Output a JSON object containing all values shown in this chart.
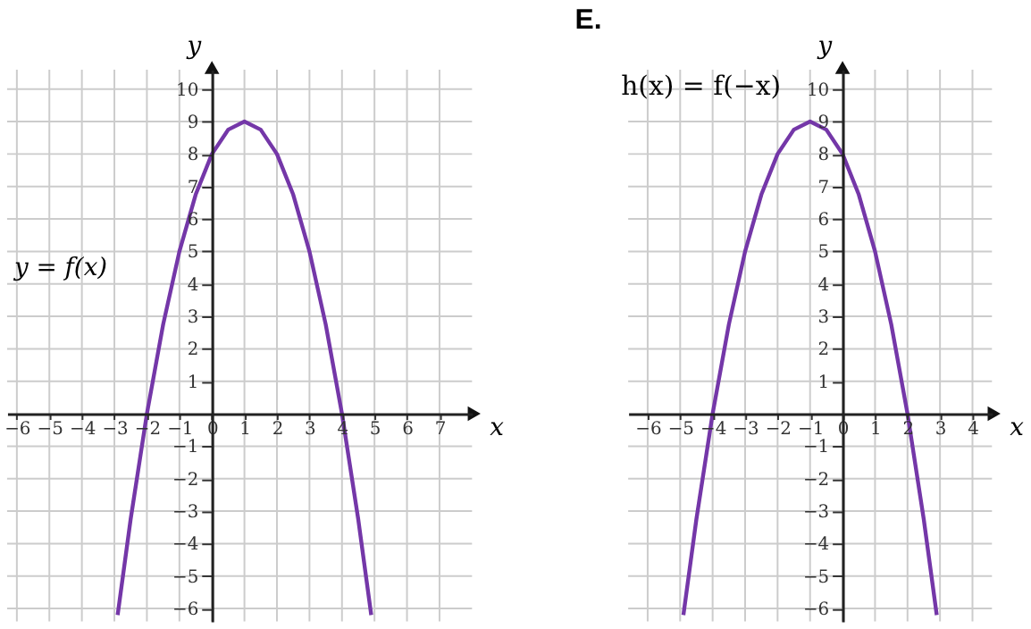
{
  "chart_data": [
    {
      "type": "line",
      "xlabel": "x",
      "ylabel": "y",
      "annotations": [
        "y = f(x)"
      ],
      "grid": true,
      "xlim": [
        -6.3,
        8
      ],
      "ylim": [
        -6.4,
        10.6
      ],
      "xticks": [
        -6,
        -5,
        -4,
        -3,
        -2,
        -1,
        0,
        1,
        2,
        3,
        4,
        5,
        6,
        7
      ],
      "yticks": [
        -6,
        -5,
        -4,
        -3,
        -2,
        -1,
        1,
        2,
        3,
        4,
        5,
        6,
        7,
        8,
        9,
        10
      ],
      "series": [
        {
          "color": "#7437a8",
          "x": [
            -2.9,
            -2.5,
            -2,
            -1.5,
            -1,
            -0.5,
            0,
            0.5,
            1,
            1.5,
            2,
            2.5,
            3,
            3.5,
            4,
            4.5,
            4.9
          ],
          "values": [
            -6.2,
            -3.25,
            0,
            2.75,
            5,
            6.75,
            8,
            8.75,
            9,
            8.75,
            8,
            6.75,
            5,
            2.75,
            0,
            -3.25,
            -6.2
          ]
        }
      ]
    },
    {
      "type": "line",
      "title": "E.",
      "xlabel": "x",
      "ylabel": "y",
      "annotations": [
        "h(x) = f(−x)"
      ],
      "grid": true,
      "xlim": [
        -6.6,
        4.6
      ],
      "ylim": [
        -6.4,
        10.6
      ],
      "xticks": [
        -6,
        -5,
        -4,
        -3,
        -2,
        -1,
        0,
        1,
        2,
        3,
        4
      ],
      "yticks": [
        -6,
        -5,
        -4,
        -3,
        -2,
        -1,
        1,
        2,
        3,
        4,
        5,
        6,
        7,
        8,
        9,
        10
      ],
      "series": [
        {
          "color": "#7437a8",
          "x": [
            -4.9,
            -4.5,
            -4,
            -3.5,
            -3,
            -2.5,
            -2,
            -1.5,
            -1,
            -0.5,
            0,
            0.5,
            1,
            1.5,
            2,
            2.5,
            2.9
          ],
          "values": [
            -6.2,
            -3.25,
            0,
            2.75,
            5,
            6.75,
            8,
            8.75,
            9,
            8.75,
            8,
            6.75,
            5,
            2.75,
            0,
            -3.25,
            -6.2
          ]
        }
      ]
    }
  ]
}
